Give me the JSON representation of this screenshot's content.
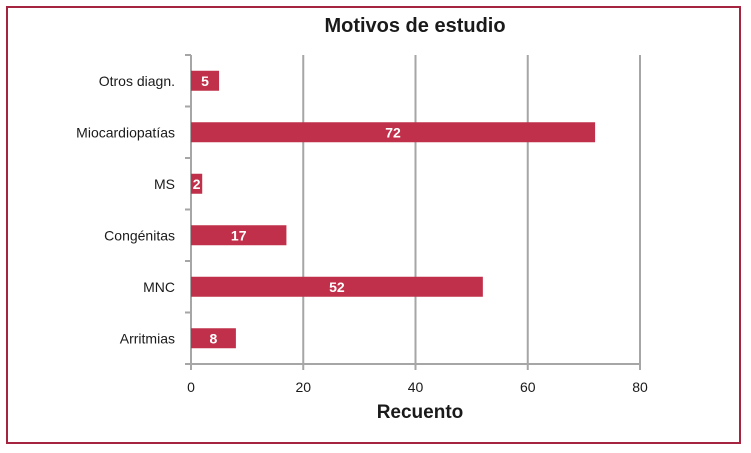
{
  "chart_data": {
    "type": "bar",
    "orientation": "horizontal",
    "title": "Motivos de estudio",
    "xlabel": "Recuento",
    "ylabel": "",
    "categories": [
      "Otros diagn.",
      "Miocardiopatías",
      "MS",
      "Congénitas",
      "MNC",
      "Arritmias"
    ],
    "values": [
      5,
      72,
      2,
      17,
      52,
      8
    ],
    "xlim": [
      0,
      80
    ],
    "xticks": [
      0,
      20,
      40,
      60,
      80
    ],
    "grid": "vertical",
    "legend": "none",
    "colors": {
      "bar": "#c0304a",
      "frame": "#a5243f",
      "grid": "#a6a6a6"
    }
  }
}
